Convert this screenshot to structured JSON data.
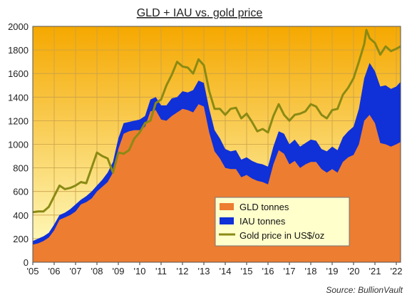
{
  "chart_data": {
    "type": "area",
    "title": "GLD + IAU vs. gold price",
    "source": "Source:  BullionVault",
    "xlim": [
      2005.0,
      2022.2
    ],
    "ylim": [
      0,
      2000
    ],
    "grid": true,
    "legend_position": "bottom-right",
    "background_gradient": {
      "top": "#f5a800",
      "bottom": "#ffffc8"
    },
    "x_ticks": [
      {
        "value": 2005,
        "label": "'05"
      },
      {
        "value": 2006,
        "label": "'06"
      },
      {
        "value": 2007,
        "label": "'07"
      },
      {
        "value": 2008,
        "label": "'08"
      },
      {
        "value": 2009,
        "label": "'09"
      },
      {
        "value": 2010,
        "label": "'10"
      },
      {
        "value": 2011,
        "label": "'11"
      },
      {
        "value": 2012,
        "label": "'12"
      },
      {
        "value": 2013,
        "label": "'13"
      },
      {
        "value": 2014,
        "label": "'14"
      },
      {
        "value": 2015,
        "label": "'15"
      },
      {
        "value": 2016,
        "label": "'16"
      },
      {
        "value": 2017,
        "label": "'17"
      },
      {
        "value": 2018,
        "label": "'18"
      },
      {
        "value": 2019,
        "label": "'19"
      },
      {
        "value": 2020,
        "label": "'20"
      },
      {
        "value": 2021,
        "label": "'21"
      },
      {
        "value": 2022,
        "label": "'22"
      }
    ],
    "y_ticks": [
      {
        "value": 0,
        "label": "0"
      },
      {
        "value": 200,
        "label": "200"
      },
      {
        "value": 400,
        "label": "400"
      },
      {
        "value": 600,
        "label": "600"
      },
      {
        "value": 800,
        "label": "800"
      },
      {
        "value": 1000,
        "label": "1000"
      },
      {
        "value": 1200,
        "label": "1200"
      },
      {
        "value": 1400,
        "label": "1400"
      },
      {
        "value": 1600,
        "label": "1600"
      },
      {
        "value": 1800,
        "label": "1800"
      },
      {
        "value": 2000,
        "label": "2000"
      }
    ],
    "series": [
      {
        "name": "GLD tonnes",
        "kind": "area",
        "color": "#ed7d31",
        "points": [
          [
            2005.0,
            150
          ],
          [
            2005.25,
            160
          ],
          [
            2005.5,
            180
          ],
          [
            2005.75,
            210
          ],
          [
            2006.0,
            270
          ],
          [
            2006.25,
            360
          ],
          [
            2006.5,
            380
          ],
          [
            2006.75,
            400
          ],
          [
            2007.0,
            430
          ],
          [
            2007.25,
            490
          ],
          [
            2007.5,
            510
          ],
          [
            2007.75,
            540
          ],
          [
            2008.0,
            600
          ],
          [
            2008.25,
            640
          ],
          [
            2008.5,
            680
          ],
          [
            2008.75,
            760
          ],
          [
            2009.0,
            960
          ],
          [
            2009.25,
            1090
          ],
          [
            2009.5,
            1110
          ],
          [
            2009.75,
            1120
          ],
          [
            2010.0,
            1120
          ],
          [
            2010.25,
            1150
          ],
          [
            2010.5,
            1280
          ],
          [
            2010.75,
            1290
          ],
          [
            2011.0,
            1210
          ],
          [
            2011.25,
            1200
          ],
          [
            2011.5,
            1240
          ],
          [
            2011.75,
            1270
          ],
          [
            2012.0,
            1300
          ],
          [
            2012.25,
            1290
          ],
          [
            2012.5,
            1270
          ],
          [
            2012.75,
            1340
          ],
          [
            2013.0,
            1320
          ],
          [
            2013.25,
            1100
          ],
          [
            2013.5,
            940
          ],
          [
            2013.75,
            880
          ],
          [
            2014.0,
            800
          ],
          [
            2014.25,
            790
          ],
          [
            2014.5,
            790
          ],
          [
            2014.75,
            720
          ],
          [
            2015.0,
            740
          ],
          [
            2015.25,
            710
          ],
          [
            2015.5,
            690
          ],
          [
            2015.75,
            680
          ],
          [
            2016.0,
            660
          ],
          [
            2016.25,
            830
          ],
          [
            2016.5,
            950
          ],
          [
            2016.75,
            920
          ],
          [
            2017.0,
            830
          ],
          [
            2017.25,
            860
          ],
          [
            2017.5,
            800
          ],
          [
            2017.75,
            830
          ],
          [
            2018.0,
            850
          ],
          [
            2018.25,
            850
          ],
          [
            2018.5,
            790
          ],
          [
            2018.75,
            760
          ],
          [
            2019.0,
            790
          ],
          [
            2019.25,
            760
          ],
          [
            2019.5,
            850
          ],
          [
            2019.75,
            890
          ],
          [
            2020.0,
            910
          ],
          [
            2020.25,
            1000
          ],
          [
            2020.5,
            1200
          ],
          [
            2020.75,
            1250
          ],
          [
            2021.0,
            1180
          ],
          [
            2021.25,
            1010
          ],
          [
            2021.5,
            1000
          ],
          [
            2021.75,
            980
          ],
          [
            2022.0,
            1000
          ],
          [
            2022.2,
            1020
          ]
        ]
      },
      {
        "name": "IAU tonnes",
        "kind": "area",
        "color": "#1030d8",
        "points": [
          [
            2005.0,
            180
          ],
          [
            2005.25,
            200
          ],
          [
            2005.5,
            220
          ],
          [
            2005.75,
            250
          ],
          [
            2006.0,
            320
          ],
          [
            2006.25,
            400
          ],
          [
            2006.5,
            420
          ],
          [
            2006.75,
            450
          ],
          [
            2007.0,
            490
          ],
          [
            2007.25,
            530
          ],
          [
            2007.5,
            560
          ],
          [
            2007.75,
            600
          ],
          [
            2008.0,
            650
          ],
          [
            2008.25,
            700
          ],
          [
            2008.5,
            760
          ],
          [
            2008.75,
            850
          ],
          [
            2009.0,
            1050
          ],
          [
            2009.25,
            1180
          ],
          [
            2009.5,
            1190
          ],
          [
            2009.75,
            1200
          ],
          [
            2010.0,
            1210
          ],
          [
            2010.25,
            1240
          ],
          [
            2010.5,
            1380
          ],
          [
            2010.75,
            1400
          ],
          [
            2011.0,
            1330
          ],
          [
            2011.25,
            1330
          ],
          [
            2011.5,
            1390
          ],
          [
            2011.75,
            1400
          ],
          [
            2012.0,
            1450
          ],
          [
            2012.25,
            1440
          ],
          [
            2012.5,
            1460
          ],
          [
            2012.75,
            1540
          ],
          [
            2013.0,
            1520
          ],
          [
            2013.25,
            1300
          ],
          [
            2013.5,
            1120
          ],
          [
            2013.75,
            1050
          ],
          [
            2014.0,
            960
          ],
          [
            2014.25,
            940
          ],
          [
            2014.5,
            950
          ],
          [
            2014.75,
            870
          ],
          [
            2015.0,
            890
          ],
          [
            2015.25,
            860
          ],
          [
            2015.5,
            840
          ],
          [
            2015.75,
            830
          ],
          [
            2016.0,
            810
          ],
          [
            2016.25,
            980
          ],
          [
            2016.5,
            1110
          ],
          [
            2016.75,
            1090
          ],
          [
            2017.0,
            1000
          ],
          [
            2017.25,
            1040
          ],
          [
            2017.5,
            980
          ],
          [
            2017.75,
            1010
          ],
          [
            2018.0,
            1040
          ],
          [
            2018.25,
            1030
          ],
          [
            2018.5,
            960
          ],
          [
            2018.75,
            940
          ],
          [
            2019.0,
            980
          ],
          [
            2019.25,
            950
          ],
          [
            2019.5,
            1060
          ],
          [
            2019.75,
            1110
          ],
          [
            2020.0,
            1150
          ],
          [
            2020.25,
            1300
          ],
          [
            2020.5,
            1560
          ],
          [
            2020.75,
            1690
          ],
          [
            2021.0,
            1620
          ],
          [
            2021.25,
            1490
          ],
          [
            2021.5,
            1500
          ],
          [
            2021.75,
            1470
          ],
          [
            2022.0,
            1490
          ],
          [
            2022.2,
            1530
          ]
        ]
      },
      {
        "name": "Gold price in US$/oz",
        "kind": "line",
        "color": "#8a8a14",
        "points": [
          [
            2005.0,
            425
          ],
          [
            2005.25,
            430
          ],
          [
            2005.5,
            430
          ],
          [
            2005.75,
            470
          ],
          [
            2006.0,
            560
          ],
          [
            2006.25,
            650
          ],
          [
            2006.5,
            620
          ],
          [
            2006.75,
            630
          ],
          [
            2007.0,
            650
          ],
          [
            2007.25,
            680
          ],
          [
            2007.5,
            670
          ],
          [
            2007.75,
            800
          ],
          [
            2008.0,
            930
          ],
          [
            2008.25,
            900
          ],
          [
            2008.5,
            880
          ],
          [
            2008.75,
            760
          ],
          [
            2009.0,
            930
          ],
          [
            2009.25,
            920
          ],
          [
            2009.5,
            950
          ],
          [
            2009.75,
            1050
          ],
          [
            2010.0,
            1100
          ],
          [
            2010.25,
            1180
          ],
          [
            2010.5,
            1200
          ],
          [
            2010.75,
            1350
          ],
          [
            2011.0,
            1380
          ],
          [
            2011.25,
            1500
          ],
          [
            2011.5,
            1590
          ],
          [
            2011.75,
            1700
          ],
          [
            2012.0,
            1660
          ],
          [
            2012.25,
            1650
          ],
          [
            2012.5,
            1600
          ],
          [
            2012.75,
            1720
          ],
          [
            2013.0,
            1670
          ],
          [
            2013.25,
            1450
          ],
          [
            2013.5,
            1300
          ],
          [
            2013.75,
            1300
          ],
          [
            2014.0,
            1250
          ],
          [
            2014.25,
            1300
          ],
          [
            2014.5,
            1310
          ],
          [
            2014.75,
            1220
          ],
          [
            2015.0,
            1260
          ],
          [
            2015.25,
            1190
          ],
          [
            2015.5,
            1110
          ],
          [
            2015.75,
            1130
          ],
          [
            2016.0,
            1100
          ],
          [
            2016.25,
            1240
          ],
          [
            2016.5,
            1340
          ],
          [
            2016.75,
            1250
          ],
          [
            2017.0,
            1200
          ],
          [
            2017.25,
            1250
          ],
          [
            2017.5,
            1260
          ],
          [
            2017.75,
            1280
          ],
          [
            2018.0,
            1340
          ],
          [
            2018.25,
            1320
          ],
          [
            2018.5,
            1250
          ],
          [
            2018.75,
            1220
          ],
          [
            2019.0,
            1290
          ],
          [
            2019.25,
            1300
          ],
          [
            2019.5,
            1420
          ],
          [
            2019.75,
            1480
          ],
          [
            2020.0,
            1560
          ],
          [
            2020.25,
            1700
          ],
          [
            2020.5,
            1850
          ],
          [
            2020.6,
            1970
          ],
          [
            2020.75,
            1900
          ],
          [
            2021.0,
            1860
          ],
          [
            2021.25,
            1760
          ],
          [
            2021.5,
            1830
          ],
          [
            2021.75,
            1790
          ],
          [
            2022.0,
            1810
          ],
          [
            2022.2,
            1830
          ]
        ]
      }
    ]
  }
}
